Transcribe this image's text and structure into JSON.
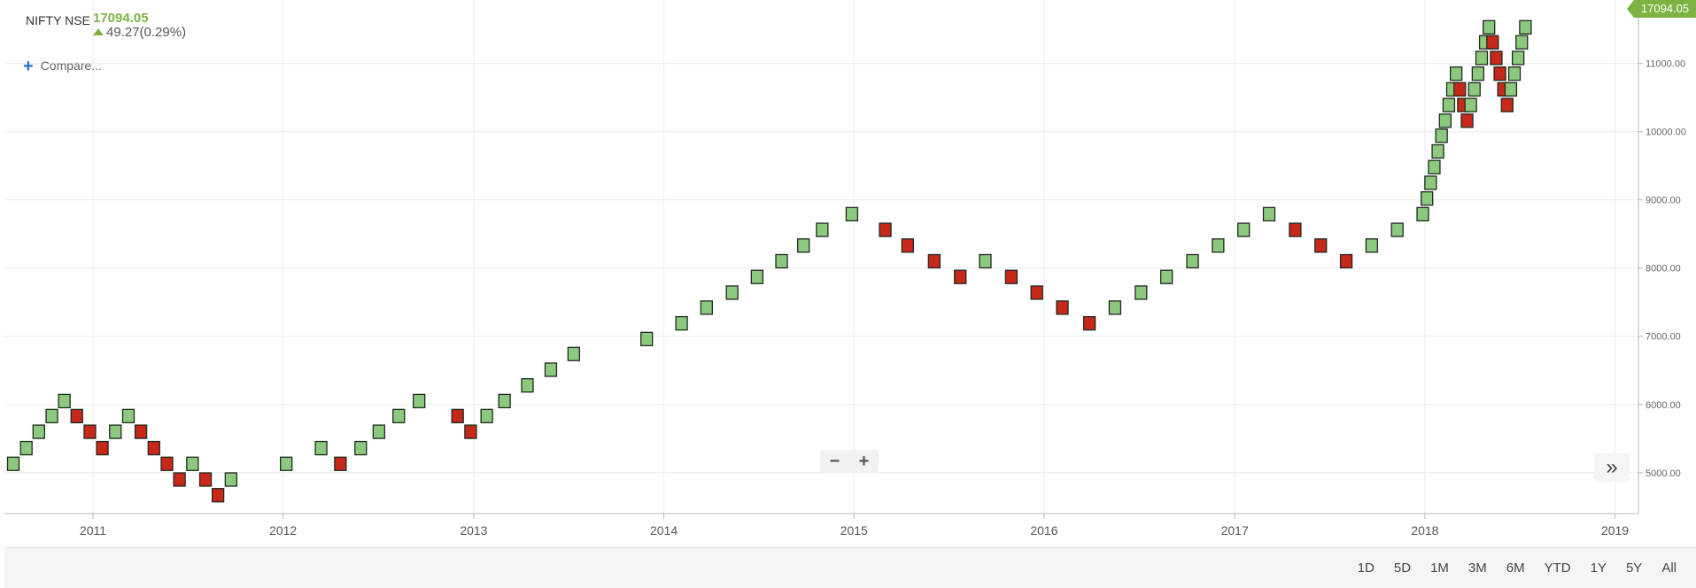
{
  "header": {
    "symbol": "NIFTY NSE",
    "last_price": "17094.05",
    "change": "49.27(0.29%)",
    "compare_label": "Compare..."
  },
  "last_price_tag": "17094.05",
  "colors": {
    "up": "#8cc97e",
    "down": "#c8281a",
    "accent": "#7cb342",
    "compare_icon": "#1e6fd0"
  },
  "icons": {
    "change": "arrow-up-icon",
    "compare": "plus-icon",
    "expand": "double-chevron-right-icon"
  },
  "zoom": {
    "out": "−",
    "in": "+"
  },
  "expand_label": "»",
  "range_buttons": [
    "1D",
    "5D",
    "1M",
    "3M",
    "6M",
    "YTD",
    "1Y",
    "5Y",
    "All"
  ],
  "chart_data": {
    "type": "renko",
    "brick_size": 250,
    "y_ticks": [
      "5000.00",
      "6000.00",
      "7000.00",
      "8000.00",
      "9000.00",
      "10000.00",
      "11000.00"
    ],
    "y_range": [
      4400,
      11800
    ],
    "x_range": [
      "2010-07-15",
      "2019-02-15"
    ],
    "x_ticks": [
      {
        "label": "2011",
        "date": "2011-01-01"
      },
      {
        "label": "2012",
        "date": "2012-01-01"
      },
      {
        "label": "2013",
        "date": "2013-01-01"
      },
      {
        "label": "2014",
        "date": "2014-01-01"
      },
      {
        "label": "2015",
        "date": "2015-01-01"
      },
      {
        "label": "2016",
        "date": "2016-01-01"
      },
      {
        "label": "2017",
        "date": "2017-01-01"
      },
      {
        "label": "2018",
        "date": "2018-01-01"
      },
      {
        "label": "2019",
        "date": "2019-01-01"
      }
    ],
    "bricks": [
      {
        "date": "2010-08-01",
        "value": 5130,
        "dir": "up"
      },
      {
        "date": "2010-08-26",
        "value": 5360,
        "dir": "up"
      },
      {
        "date": "2010-09-19",
        "value": 5600,
        "dir": "up"
      },
      {
        "date": "2010-10-14",
        "value": 5830,
        "dir": "up"
      },
      {
        "date": "2010-11-07",
        "value": 6050,
        "dir": "up"
      },
      {
        "date": "2010-12-01",
        "value": 5830,
        "dir": "down"
      },
      {
        "date": "2010-12-26",
        "value": 5600,
        "dir": "down"
      },
      {
        "date": "2011-01-19",
        "value": 5360,
        "dir": "down"
      },
      {
        "date": "2011-02-13",
        "value": 5600,
        "dir": "up"
      },
      {
        "date": "2011-03-10",
        "value": 5830,
        "dir": "up"
      },
      {
        "date": "2011-04-03",
        "value": 5600,
        "dir": "down"
      },
      {
        "date": "2011-04-28",
        "value": 5360,
        "dir": "down"
      },
      {
        "date": "2011-05-23",
        "value": 5130,
        "dir": "down"
      },
      {
        "date": "2011-06-16",
        "value": 4900,
        "dir": "down"
      },
      {
        "date": "2011-07-11",
        "value": 5130,
        "dir": "up"
      },
      {
        "date": "2011-08-05",
        "value": 4900,
        "dir": "down"
      },
      {
        "date": "2011-08-29",
        "value": 4670,
        "dir": "down"
      },
      {
        "date": "2011-09-23",
        "value": 4900,
        "dir": "up"
      },
      {
        "date": "2012-01-07",
        "value": 5130,
        "dir": "up"
      },
      {
        "date": "2012-03-14",
        "value": 5360,
        "dir": "up"
      },
      {
        "date": "2012-04-20",
        "value": 5130,
        "dir": "down"
      },
      {
        "date": "2012-05-29",
        "value": 5360,
        "dir": "up"
      },
      {
        "date": "2012-07-03",
        "value": 5600,
        "dir": "up"
      },
      {
        "date": "2012-08-10",
        "value": 5830,
        "dir": "up"
      },
      {
        "date": "2012-09-18",
        "value": 6050,
        "dir": "up"
      },
      {
        "date": "2012-12-01",
        "value": 5830,
        "dir": "down"
      },
      {
        "date": "2012-12-26",
        "value": 5600,
        "dir": "down"
      },
      {
        "date": "2013-01-26",
        "value": 5830,
        "dir": "up"
      },
      {
        "date": "2013-03-01",
        "value": 6050,
        "dir": "up"
      },
      {
        "date": "2013-04-14",
        "value": 6280,
        "dir": "up"
      },
      {
        "date": "2013-05-29",
        "value": 6510,
        "dir": "up"
      },
      {
        "date": "2013-07-12",
        "value": 6740,
        "dir": "up"
      },
      {
        "date": "2013-11-29",
        "value": 6960,
        "dir": "up"
      },
      {
        "date": "2014-02-04",
        "value": 7190,
        "dir": "up"
      },
      {
        "date": "2014-03-24",
        "value": 7420,
        "dir": "up"
      },
      {
        "date": "2014-05-12",
        "value": 7640,
        "dir": "up"
      },
      {
        "date": "2014-06-29",
        "value": 7870,
        "dir": "up"
      },
      {
        "date": "2014-08-15",
        "value": 8100,
        "dir": "up"
      },
      {
        "date": "2014-09-26",
        "value": 8330,
        "dir": "up"
      },
      {
        "date": "2014-11-01",
        "value": 8560,
        "dir": "up"
      },
      {
        "date": "2014-12-28",
        "value": 8790,
        "dir": "up"
      },
      {
        "date": "2015-03-02",
        "value": 8560,
        "dir": "down"
      },
      {
        "date": "2015-04-14",
        "value": 8330,
        "dir": "down"
      },
      {
        "date": "2015-06-04",
        "value": 8100,
        "dir": "down"
      },
      {
        "date": "2015-07-24",
        "value": 7870,
        "dir": "down"
      },
      {
        "date": "2015-09-10",
        "value": 8100,
        "dir": "up"
      },
      {
        "date": "2015-10-30",
        "value": 7870,
        "dir": "down"
      },
      {
        "date": "2015-12-18",
        "value": 7640,
        "dir": "down"
      },
      {
        "date": "2016-02-05",
        "value": 7420,
        "dir": "down"
      },
      {
        "date": "2016-03-28",
        "value": 7190,
        "dir": "down"
      },
      {
        "date": "2016-05-16",
        "value": 7420,
        "dir": "up"
      },
      {
        "date": "2016-07-05",
        "value": 7640,
        "dir": "up"
      },
      {
        "date": "2016-08-23",
        "value": 7870,
        "dir": "up"
      },
      {
        "date": "2016-10-12",
        "value": 8100,
        "dir": "up"
      },
      {
        "date": "2016-11-30",
        "value": 8330,
        "dir": "up"
      },
      {
        "date": "2017-01-18",
        "value": 8560,
        "dir": "up"
      },
      {
        "date": "2017-03-08",
        "value": 8790,
        "dir": "up"
      },
      {
        "date": "2017-04-27",
        "value": 8560,
        "dir": "down"
      },
      {
        "date": "2017-06-15",
        "value": 8330,
        "dir": "down"
      },
      {
        "date": "2017-08-03",
        "value": 8100,
        "dir": "down"
      },
      {
        "date": "2017-09-21",
        "value": 8330,
        "dir": "up"
      },
      {
        "date": "2017-11-09",
        "value": 8560,
        "dir": "up"
      },
      {
        "date": "2017-12-28",
        "value": 8790,
        "dir": "up"
      },
      {
        "date": "2018-01-05",
        "value": 9020,
        "dir": "up"
      },
      {
        "date": "2018-01-12",
        "value": 9250,
        "dir": "up"
      },
      {
        "date": "2018-01-19",
        "value": 9480,
        "dir": "up"
      },
      {
        "date": "2018-01-26",
        "value": 9710,
        "dir": "up"
      },
      {
        "date": "2018-02-02",
        "value": 9940,
        "dir": "up"
      },
      {
        "date": "2018-02-09",
        "value": 10160,
        "dir": "up"
      },
      {
        "date": "2018-02-16",
        "value": 10390,
        "dir": "up"
      },
      {
        "date": "2018-02-23",
        "value": 10620,
        "dir": "up"
      },
      {
        "date": "2018-03-02",
        "value": 10850,
        "dir": "up"
      },
      {
        "date": "2018-03-09",
        "value": 10620,
        "dir": "down"
      },
      {
        "date": "2018-03-16",
        "value": 10390,
        "dir": "down"
      },
      {
        "date": "2018-03-23",
        "value": 10160,
        "dir": "down"
      },
      {
        "date": "2018-03-30",
        "value": 10390,
        "dir": "up"
      },
      {
        "date": "2018-04-06",
        "value": 10620,
        "dir": "up"
      },
      {
        "date": "2018-04-13",
        "value": 10850,
        "dir": "up"
      },
      {
        "date": "2018-04-20",
        "value": 11080,
        "dir": "up"
      },
      {
        "date": "2018-04-27",
        "value": 11310,
        "dir": "up"
      },
      {
        "date": "2018-05-04",
        "value": 11530,
        "dir": "up"
      },
      {
        "date": "2018-05-11",
        "value": 11310,
        "dir": "down"
      },
      {
        "date": "2018-05-18",
        "value": 11080,
        "dir": "down"
      },
      {
        "date": "2018-05-25",
        "value": 10850,
        "dir": "down"
      },
      {
        "date": "2018-06-01",
        "value": 10620,
        "dir": "down"
      },
      {
        "date": "2018-06-08",
        "value": 10390,
        "dir": "down"
      },
      {
        "date": "2018-06-15",
        "value": 10620,
        "dir": "up"
      },
      {
        "date": "2018-06-22",
        "value": 10850,
        "dir": "up"
      },
      {
        "date": "2018-06-29",
        "value": 11080,
        "dir": "up"
      },
      {
        "date": "2018-07-06",
        "value": 11310,
        "dir": "up"
      },
      {
        "date": "2018-07-13",
        "value": 11530,
        "dir": "up"
      }
    ]
  }
}
